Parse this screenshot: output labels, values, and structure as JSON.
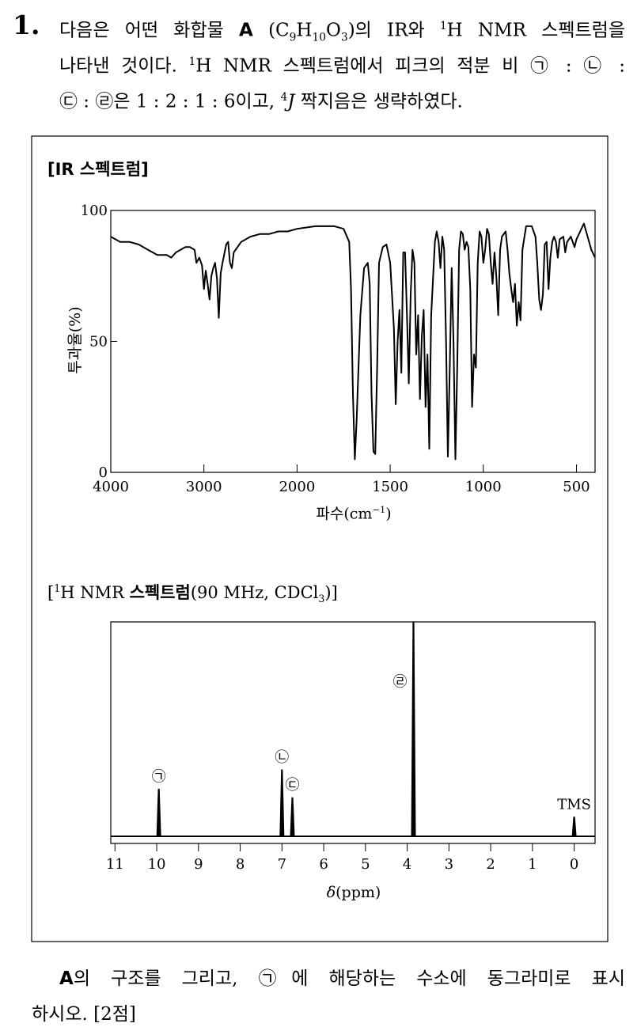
{
  "question": {
    "number": "1.",
    "lines": [
      [
        {
          "text": "다음은 어떤 화합물 "
        },
        {
          "text": "A",
          "style": "sansbold"
        },
        {
          "text": " (C"
        },
        {
          "text": "9",
          "style": "sub"
        },
        {
          "text": "H"
        },
        {
          "text": "10",
          "style": "sub"
        },
        {
          "text": "O"
        },
        {
          "text": "3",
          "style": "sub"
        },
        {
          "text": ")의 IR와 "
        },
        {
          "text": "1",
          "style": "sup"
        },
        {
          "text": "H NMR 스펙트럼을"
        }
      ],
      [
        {
          "text": "나타낸 것이다. "
        },
        {
          "text": "1",
          "style": "sup"
        },
        {
          "text": "H NMR 스펙트럼에서 피크의 적분 비 ㉠ : ㉡ :"
        }
      ],
      [
        {
          "text": "㉢ : ㉣은 1 : 2 : 1 : 6이고, "
        },
        {
          "text": "4",
          "style": "sup"
        },
        {
          "text": "J",
          "style": "italic"
        },
        {
          "text": " 짝지음은 생략하였다."
        }
      ]
    ]
  },
  "chart_data": [
    {
      "type": "line",
      "title": [
        {
          "text": "[IR 스펙트럼]",
          "style": "sansbold"
        }
      ],
      "y_label": [
        {
          "text": "투과율(%)"
        }
      ],
      "x_label": [
        {
          "text": "파수(cm"
        },
        {
          "text": "−1",
          "style": "sup"
        },
        {
          "text": ")"
        }
      ],
      "color": "#000000",
      "xlim": [
        4000,
        400
      ],
      "xticks": [
        4000,
        3000,
        2000,
        1500,
        1000,
        500
      ],
      "ylim": [
        0,
        100
      ],
      "yticks": [
        0,
        50,
        100
      ],
      "x": [
        4000,
        3900,
        3800,
        3700,
        3600,
        3500,
        3400,
        3350,
        3300,
        3200,
        3150,
        3100,
        3080,
        3050,
        3020,
        3000,
        2980,
        2960,
        2940,
        2920,
        2900,
        2880,
        2860,
        2840,
        2820,
        2800,
        2760,
        2740,
        2720,
        2700,
        2680,
        2600,
        2500,
        2400,
        2300,
        2200,
        2100,
        2000,
        1900,
        1800,
        1750,
        1720,
        1710,
        1700,
        1690,
        1680,
        1660,
        1640,
        1620,
        1610,
        1600,
        1590,
        1580,
        1570,
        1560,
        1540,
        1520,
        1500,
        1480,
        1470,
        1460,
        1450,
        1440,
        1430,
        1420,
        1410,
        1400,
        1390,
        1380,
        1370,
        1360,
        1350,
        1340,
        1330,
        1320,
        1310,
        1300,
        1290,
        1280,
        1260,
        1250,
        1240,
        1230,
        1220,
        1210,
        1200,
        1190,
        1180,
        1170,
        1160,
        1150,
        1140,
        1130,
        1120,
        1110,
        1100,
        1090,
        1080,
        1070,
        1060,
        1050,
        1040,
        1030,
        1020,
        1010,
        1000,
        990,
        980,
        970,
        960,
        950,
        940,
        930,
        920,
        910,
        900,
        880,
        870,
        860,
        850,
        840,
        830,
        820,
        810,
        800,
        790,
        770,
        740,
        720,
        710,
        700,
        690,
        680,
        670,
        660,
        650,
        640,
        630,
        620,
        610,
        600,
        590,
        570,
        560,
        550,
        530,
        510,
        500,
        480,
        460,
        440,
        420,
        400
      ],
      "values": [
        90,
        88,
        88,
        87,
        85,
        83,
        83,
        82,
        84,
        86,
        86,
        85,
        80,
        82,
        79,
        70,
        77,
        72,
        66,
        75,
        78,
        80,
        74,
        59,
        76,
        80,
        87,
        88,
        80,
        78,
        84,
        88,
        90,
        91,
        91,
        92,
        92,
        93,
        94,
        94,
        93,
        88,
        70,
        30,
        5,
        20,
        60,
        78,
        80,
        72,
        30,
        8,
        7,
        40,
        80,
        86,
        87,
        80,
        55,
        26,
        50,
        62,
        38,
        84,
        84,
        60,
        34,
        68,
        85,
        80,
        45,
        60,
        28,
        52,
        62,
        25,
        45,
        9,
        60,
        88,
        92,
        88,
        78,
        90,
        85,
        50,
        6,
        40,
        78,
        50,
        5,
        40,
        85,
        92,
        91,
        85,
        88,
        86,
        70,
        25,
        45,
        40,
        80,
        92,
        90,
        80,
        85,
        93,
        91,
        80,
        72,
        84,
        75,
        60,
        85,
        90,
        92,
        85,
        76,
        70,
        65,
        72,
        56,
        65,
        58,
        85,
        94,
        94,
        90,
        80,
        66,
        62,
        68,
        87,
        88,
        70,
        82,
        88,
        90,
        88,
        82,
        89,
        90,
        84,
        88,
        90,
        86,
        89,
        92,
        95,
        90,
        85,
        82
      ]
    },
    {
      "type": "peaks",
      "title": [
        {
          "text": "["
        },
        {
          "text": "1",
          "style": "sup"
        },
        {
          "text": "H NMR "
        },
        {
          "text": "스펙트럼",
          "style": "sansbold"
        },
        {
          "text": "(90 MHz, CDCl"
        },
        {
          "text": "3",
          "style": "sub"
        },
        {
          "text": ")]"
        }
      ],
      "x_label": [
        {
          "text": "δ",
          "style": "italic"
        },
        {
          "text": "(ppm)"
        }
      ],
      "color": "#000000",
      "xlim": [
        11.1,
        -0.5
      ],
      "xticks": [
        11,
        10,
        9,
        8,
        7,
        6,
        5,
        4,
        3,
        2,
        1,
        0
      ],
      "ylim": [
        0,
        100
      ],
      "x": [
        9.95,
        7.0,
        6.75,
        3.85,
        0
      ],
      "values": [
        22,
        31,
        18,
        100,
        9
      ],
      "peak_labels": [
        "㉠",
        "㉡",
        "㉢",
        "㉣",
        "TMS"
      ]
    }
  ],
  "task": {
    "lines": [
      [
        {
          "text": "A",
          "style": "sansbold"
        },
        {
          "text": "의 구조를 그리고, ㉠에 해당하는 수소에 동그라미로 표시"
        }
      ],
      [
        {
          "text": "하시오. [2점]"
        }
      ]
    ]
  }
}
